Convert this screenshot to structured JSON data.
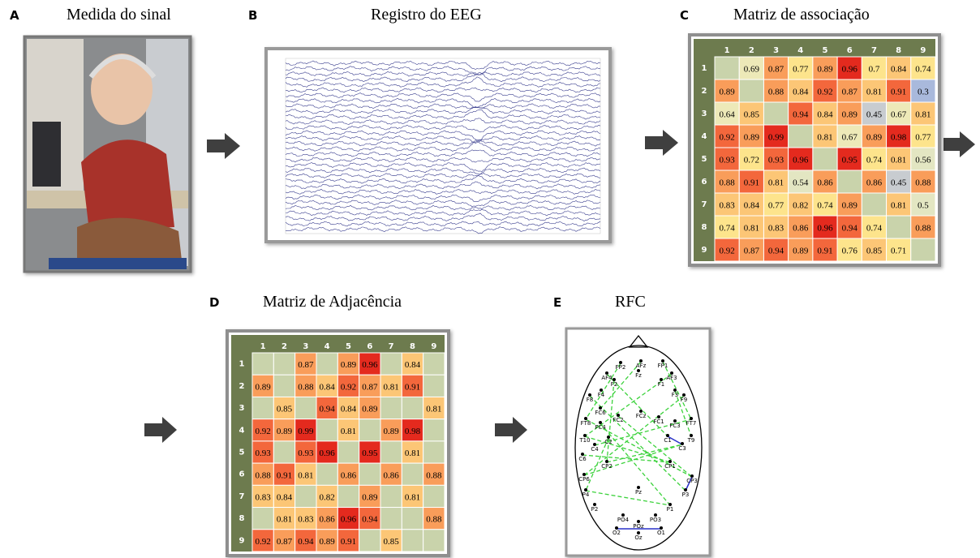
{
  "panels": [
    {
      "letter": "A",
      "title": "Medida do sinal"
    },
    {
      "letter": "B",
      "title": "Registro do EEG"
    },
    {
      "letter": "C",
      "title": "Matriz de associação"
    },
    {
      "letter": "D",
      "title": "Matriz de Adjacência"
    },
    {
      "letter": "E",
      "title": "RFC"
    }
  ],
  "association_matrix": {
    "headers": [
      "1",
      "2",
      "3",
      "4",
      "5",
      "6",
      "7",
      "8",
      "9"
    ],
    "rows": [
      [
        null,
        0.69,
        0.87,
        0.77,
        0.89,
        0.96,
        0.7,
        0.84,
        0.74
      ],
      [
        0.89,
        null,
        0.88,
        0.84,
        0.92,
        0.87,
        0.81,
        0.91,
        0.3
      ],
      [
        0.64,
        0.85,
        null,
        0.94,
        0.84,
        0.89,
        0.45,
        0.67,
        0.81
      ],
      [
        0.92,
        0.89,
        0.99,
        null,
        0.81,
        0.67,
        0.89,
        0.98,
        0.77
      ],
      [
        0.93,
        0.72,
        0.93,
        0.96,
        null,
        0.95,
        0.74,
        0.81,
        0.56
      ],
      [
        0.88,
        0.91,
        0.81,
        0.54,
        0.86,
        null,
        0.86,
        0.45,
        0.88
      ],
      [
        0.83,
        0.84,
        0.77,
        0.82,
        0.74,
        0.89,
        null,
        0.81,
        0.5
      ],
      [
        0.74,
        0.81,
        0.83,
        0.86,
        0.96,
        0.94,
        0.74,
        null,
        0.88
      ],
      [
        0.92,
        0.87,
        0.94,
        0.89,
        0.91,
        0.76,
        0.85,
        0.71,
        null
      ]
    ]
  },
  "adjacency_matrix": {
    "headers": [
      "1",
      "2",
      "3",
      "4",
      "5",
      "6",
      "7",
      "8",
      "9"
    ],
    "rows": [
      [
        null,
        null,
        0.87,
        null,
        0.89,
        0.96,
        null,
        0.84,
        null
      ],
      [
        0.89,
        null,
        0.88,
        0.84,
        0.92,
        0.87,
        0.81,
        0.91,
        null
      ],
      [
        null,
        0.85,
        null,
        0.94,
        0.84,
        0.89,
        null,
        null,
        0.81
      ],
      [
        0.92,
        0.89,
        0.99,
        null,
        0.81,
        null,
        0.89,
        0.98,
        null
      ],
      [
        0.93,
        null,
        0.93,
        0.96,
        null,
        0.95,
        null,
        0.81,
        null
      ],
      [
        0.88,
        0.91,
        0.81,
        null,
        0.86,
        null,
        0.86,
        null,
        0.88
      ],
      [
        0.83,
        0.84,
        null,
        0.82,
        null,
        0.89,
        null,
        0.81,
        null
      ],
      [
        null,
        0.81,
        0.83,
        0.86,
        0.96,
        0.94,
        null,
        null,
        0.88
      ],
      [
        0.92,
        0.87,
        0.94,
        0.89,
        0.91,
        null,
        0.85,
        null,
        null
      ]
    ]
  },
  "rfc": {
    "electrodes": [
      "FP2",
      "AFz",
      "FP1",
      "Fz",
      "AF4",
      "AF3",
      "F2",
      "F1",
      "F4",
      "F3",
      "F8",
      "F9",
      "FC6",
      "FT8",
      "FC4",
      "FC2",
      "FCz",
      "FC1",
      "FC3",
      "FT7",
      "T10",
      "C2",
      "C1",
      "C3",
      "T9",
      "C4",
      "C6",
      "CP2",
      "CP1",
      "CP6",
      "Pz",
      "CP3",
      "P4",
      "P3",
      "P2",
      "P1",
      "PO4",
      "PO3",
      "POz",
      "O2",
      "Oz",
      "O1"
    ]
  }
}
